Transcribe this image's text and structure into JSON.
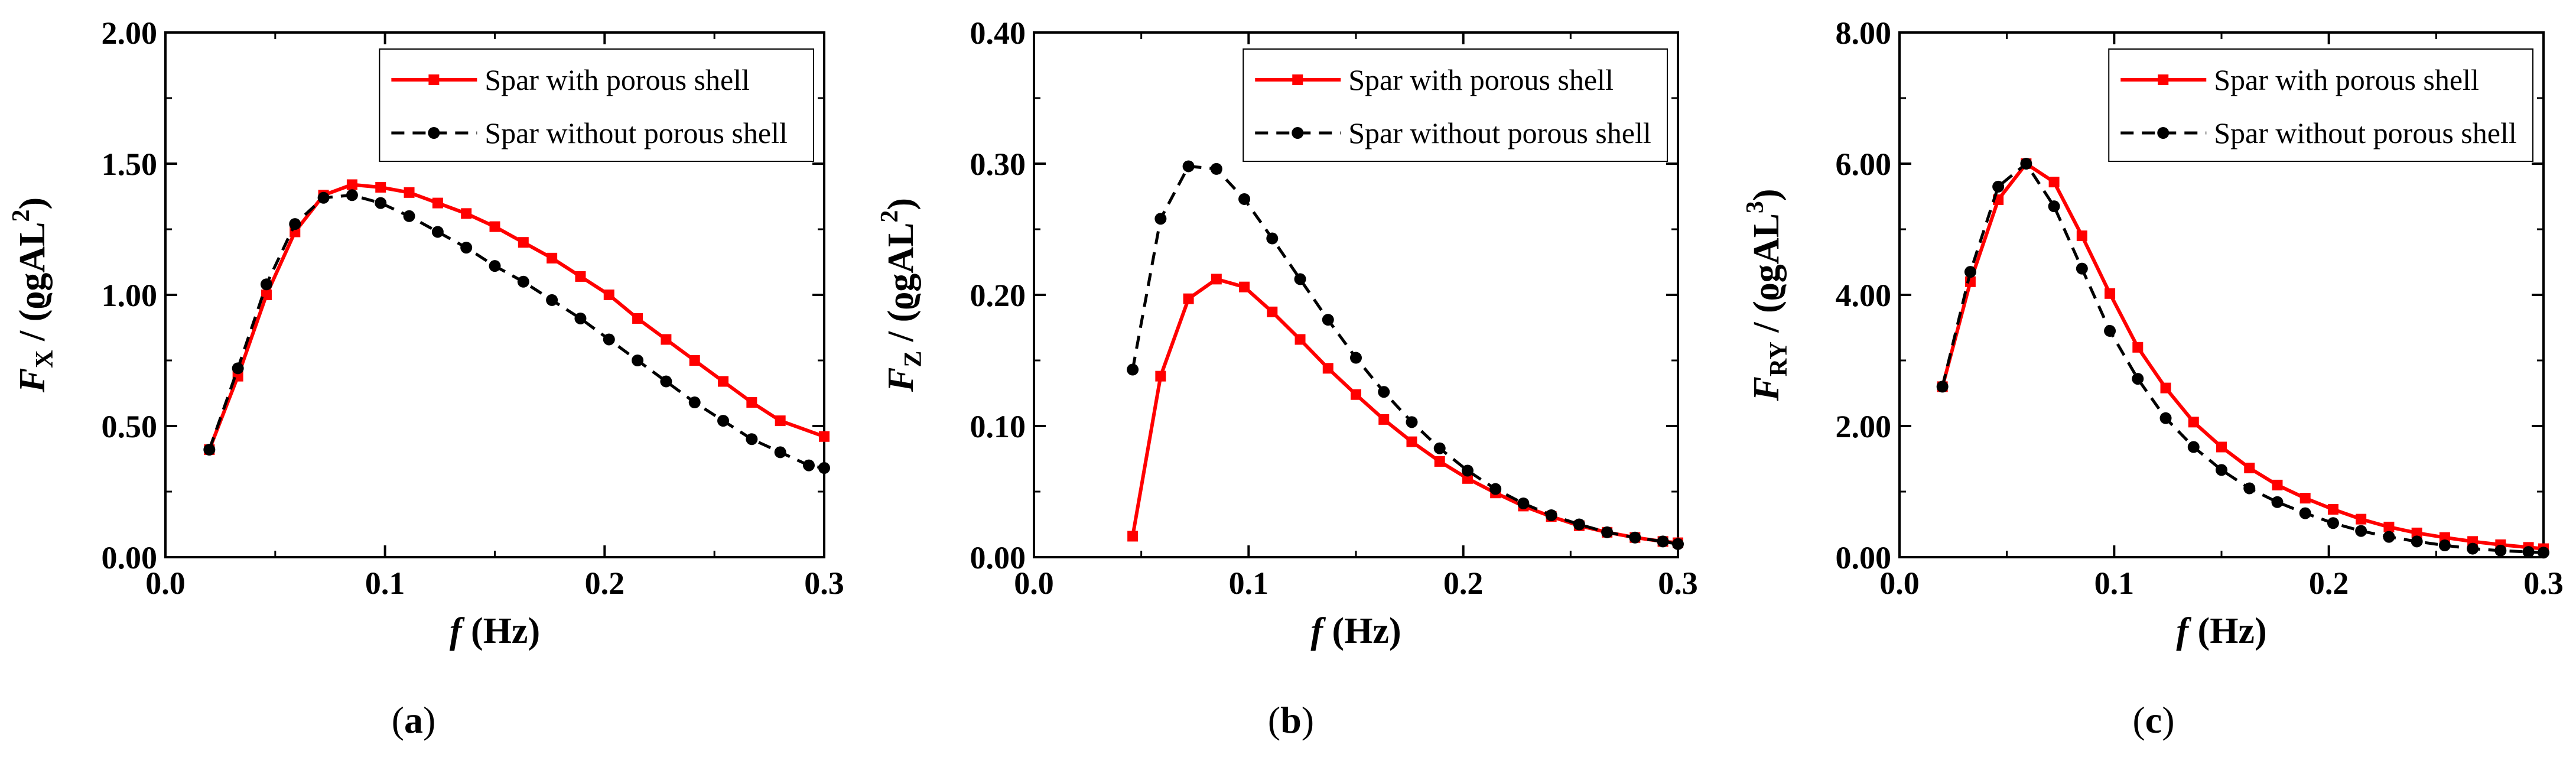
{
  "colors": {
    "with_shell": "#ff0000",
    "without_shell": "#000000",
    "axis": "#000000"
  },
  "chart_data": [
    {
      "type": "line",
      "panel_label": {
        "open": "(",
        "letter": "a",
        "close": ")"
      },
      "xlabel": {
        "symbol": "f",
        "unit": " (Hz)"
      },
      "ylabel": {
        "symbol": "F",
        "sub": "X",
        "rest": " / (ϱgAL",
        "sup": "2",
        "close": ")"
      },
      "xlim": [
        0.0,
        0.3
      ],
      "ylim": [
        0.0,
        2.0
      ],
      "xticks": [
        0.0,
        0.1,
        0.2,
        0.3
      ],
      "xtick_labels": [
        "0.0",
        "0.1",
        "0.2",
        "0.3"
      ],
      "yticks": [
        0.0,
        0.5,
        1.0,
        1.5,
        2.0
      ],
      "ytick_labels": [
        "0.00",
        "0.50",
        "1.00",
        "1.50",
        "2.00"
      ],
      "x": [
        0.02,
        0.033,
        0.046,
        0.059,
        0.072,
        0.085,
        0.098,
        0.111,
        0.124,
        0.137,
        0.15,
        0.163,
        0.176,
        0.189,
        0.202,
        0.215,
        0.228,
        0.241,
        0.254,
        0.267,
        0.28,
        0.293,
        0.3
      ],
      "series": [
        {
          "name": "Spar with porous shell",
          "style": "solid",
          "marker": "square",
          "color": "#ff0000",
          "x": [
            0.02,
            0.033,
            0.046,
            0.059,
            0.072,
            0.085,
            0.098,
            0.111,
            0.124,
            0.137,
            0.15,
            0.163,
            0.176,
            0.189,
            0.202,
            0.215,
            0.228,
            0.241,
            0.254,
            0.267,
            0.28,
            0.3
          ],
          "values": [
            0.41,
            0.69,
            1.0,
            1.24,
            1.38,
            1.42,
            1.41,
            1.39,
            1.35,
            1.31,
            1.26,
            1.2,
            1.14,
            1.07,
            1.0,
            0.91,
            0.83,
            0.75,
            0.67,
            0.59,
            0.52,
            0.46
          ]
        },
        {
          "name": "Spar without porous shell",
          "style": "dashed",
          "marker": "circle",
          "color": "#000000",
          "x": [
            0.02,
            0.033,
            0.046,
            0.059,
            0.072,
            0.085,
            0.098,
            0.111,
            0.124,
            0.137,
            0.15,
            0.163,
            0.176,
            0.189,
            0.202,
            0.215,
            0.228,
            0.241,
            0.254,
            0.267,
            0.28,
            0.293,
            0.3
          ],
          "values": [
            0.41,
            0.72,
            1.04,
            1.27,
            1.37,
            1.38,
            1.35,
            1.3,
            1.24,
            1.18,
            1.11,
            1.05,
            0.98,
            0.91,
            0.83,
            0.75,
            0.67,
            0.59,
            0.52,
            0.45,
            0.4,
            0.35,
            0.34
          ]
        }
      ],
      "legend": "top-right"
    },
    {
      "type": "line",
      "panel_label": {
        "open": "(",
        "letter": "b",
        "close": ")"
      },
      "xlabel": {
        "symbol": "f",
        "unit": " (Hz)"
      },
      "ylabel": {
        "symbol": "F",
        "sub": "Z",
        "rest": " / (ϱgAL",
        "sup": "2",
        "close": ")"
      },
      "xlim": [
        0.0,
        0.3
      ],
      "ylim": [
        0.0,
        0.4
      ],
      "xticks": [
        0.0,
        0.1,
        0.2,
        0.3
      ],
      "xtick_labels": [
        "0.0",
        "0.1",
        "0.2",
        "0.3"
      ],
      "yticks": [
        0.0,
        0.1,
        0.2,
        0.3,
        0.4
      ],
      "ytick_labels": [
        "0.00",
        "0.10",
        "0.20",
        "0.30",
        "0.40"
      ],
      "series": [
        {
          "name": "Spar with porous shell",
          "style": "solid",
          "marker": "square",
          "color": "#ff0000",
          "x": [
            0.046,
            0.059,
            0.072,
            0.085,
            0.098,
            0.111,
            0.124,
            0.137,
            0.15,
            0.163,
            0.176,
            0.189,
            0.202,
            0.215,
            0.228,
            0.241,
            0.254,
            0.267,
            0.28,
            0.293,
            0.3
          ],
          "values": [
            0.016,
            0.138,
            0.197,
            0.212,
            0.206,
            0.187,
            0.166,
            0.144,
            0.124,
            0.105,
            0.088,
            0.073,
            0.06,
            0.049,
            0.039,
            0.031,
            0.024,
            0.019,
            0.015,
            0.012,
            0.011
          ]
        },
        {
          "name": "Spar without porous shell",
          "style": "dashed",
          "marker": "circle",
          "color": "#000000",
          "x": [
            0.046,
            0.059,
            0.072,
            0.085,
            0.098,
            0.111,
            0.124,
            0.137,
            0.15,
            0.163,
            0.176,
            0.189,
            0.202,
            0.215,
            0.228,
            0.241,
            0.254,
            0.267,
            0.28,
            0.293,
            0.3
          ],
          "values": [
            0.143,
            0.258,
            0.298,
            0.296,
            0.273,
            0.243,
            0.212,
            0.181,
            0.152,
            0.126,
            0.103,
            0.083,
            0.066,
            0.052,
            0.041,
            0.032,
            0.025,
            0.019,
            0.015,
            0.012,
            0.01
          ]
        }
      ],
      "legend": "top-right"
    },
    {
      "type": "line",
      "panel_label": {
        "open": "(",
        "letter": "c",
        "close": ")"
      },
      "xlabel": {
        "symbol": "f",
        "unit": " (Hz)"
      },
      "ylabel": {
        "symbol": "F",
        "sub": "RY",
        "rest": " / (ϱgAL",
        "sup": "3",
        "close": ")"
      },
      "xlim": [
        0.0,
        0.3
      ],
      "ylim": [
        0.0,
        8.0
      ],
      "xticks": [
        0.0,
        0.1,
        0.2,
        0.3
      ],
      "xtick_labels": [
        "0.0",
        "0.1",
        "0.2",
        "0.3"
      ],
      "yticks": [
        0.0,
        2.0,
        4.0,
        6.0,
        8.0
      ],
      "ytick_labels": [
        "0.00",
        "2.00",
        "4.00",
        "6.00",
        "8.00"
      ],
      "series": [
        {
          "name": "Spar with porous shell",
          "style": "solid",
          "marker": "square",
          "color": "#ff0000",
          "x": [
            0.02,
            0.033,
            0.046,
            0.059,
            0.072,
            0.085,
            0.098,
            0.111,
            0.124,
            0.137,
            0.15,
            0.163,
            0.176,
            0.189,
            0.202,
            0.215,
            0.228,
            0.241,
            0.254,
            0.267,
            0.28,
            0.293,
            0.3
          ],
          "values": [
            2.6,
            4.2,
            5.45,
            6.0,
            5.72,
            4.9,
            4.02,
            3.2,
            2.58,
            2.06,
            1.68,
            1.36,
            1.1,
            0.9,
            0.73,
            0.58,
            0.46,
            0.37,
            0.3,
            0.24,
            0.19,
            0.15,
            0.13
          ]
        },
        {
          "name": "Spar without porous shell",
          "style": "dashed",
          "marker": "circle",
          "color": "#000000",
          "x": [
            0.02,
            0.033,
            0.046,
            0.059,
            0.072,
            0.085,
            0.098,
            0.111,
            0.124,
            0.137,
            0.15,
            0.163,
            0.176,
            0.189,
            0.202,
            0.215,
            0.228,
            0.241,
            0.254,
            0.267,
            0.28,
            0.293,
            0.3
          ],
          "values": [
            2.6,
            4.35,
            5.65,
            6.0,
            5.35,
            4.4,
            3.45,
            2.72,
            2.12,
            1.68,
            1.33,
            1.05,
            0.84,
            0.67,
            0.52,
            0.4,
            0.31,
            0.24,
            0.18,
            0.13,
            0.1,
            0.08,
            0.07
          ]
        }
      ],
      "legend": "top-right"
    }
  ]
}
